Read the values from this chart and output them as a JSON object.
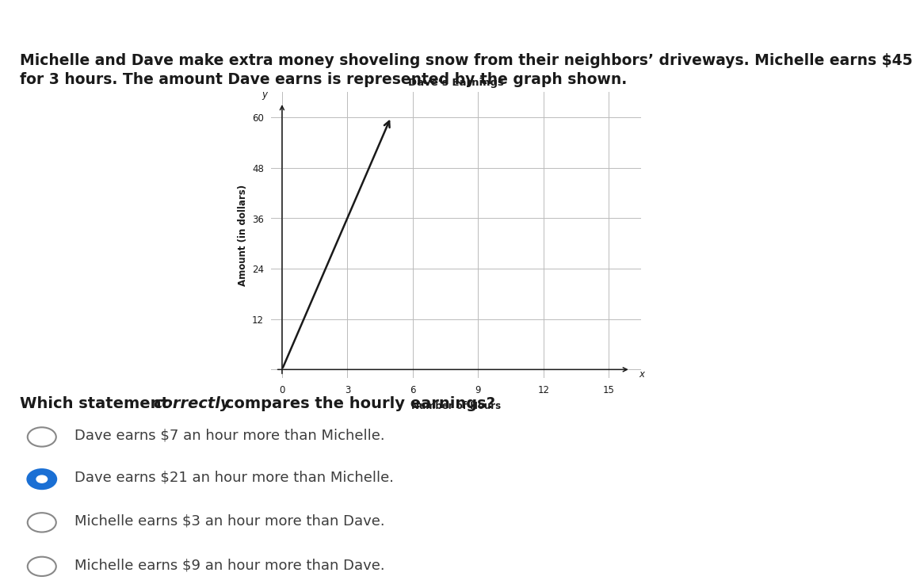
{
  "title_line1": "Michelle and Dave make extra money shoveling snow from their neighbors’ driveways. Michelle earns $45",
  "title_line2": "for 3 hours. The amount Dave earns is represented by the graph shown.",
  "graph_title": "Dave’s Earnings",
  "xlabel": "Number of Hours",
  "ylabel": "Amount (in dollars)",
  "x_ticks": [
    0,
    3,
    6,
    9,
    12,
    15
  ],
  "y_ticks": [
    0,
    12,
    24,
    36,
    48,
    60
  ],
  "xlim": [
    -0.5,
    16.5
  ],
  "ylim": [
    -2,
    66
  ],
  "line_x": [
    0,
    5
  ],
  "line_y": [
    0,
    60
  ],
  "question_prefix": "Which statement ",
  "question_italic": "correctly",
  "question_suffix": " compares the hourly earnings?",
  "options": [
    {
      "text": "Dave earns $7 an hour more than Michelle.",
      "selected": false
    },
    {
      "text": "Dave earns $21 an hour more than Michelle.",
      "selected": true
    },
    {
      "text": "Michelle earns $3 an hour more than Dave.",
      "selected": false
    },
    {
      "text": "Michelle earns $9 an hour more than Dave.",
      "selected": false
    }
  ],
  "bg_color": "#ffffff",
  "text_color": "#1a1a1a",
  "grid_color": "#bbbbbb",
  "line_color": "#1a1a1a",
  "selected_fill": "#1a6fd4",
  "selected_edge": "#1a6fd4",
  "unselected_fill": "#ffffff",
  "unselected_edge": "#888888",
  "top_bar_color": "#4a90c4",
  "option_text_color": "#3d3d3d",
  "title_fontsize": 13.5,
  "graph_title_fontsize": 9.5,
  "axis_label_fontsize": 8.5,
  "tick_fontsize": 8.5,
  "question_fontsize": 14,
  "option_fontsize": 13
}
